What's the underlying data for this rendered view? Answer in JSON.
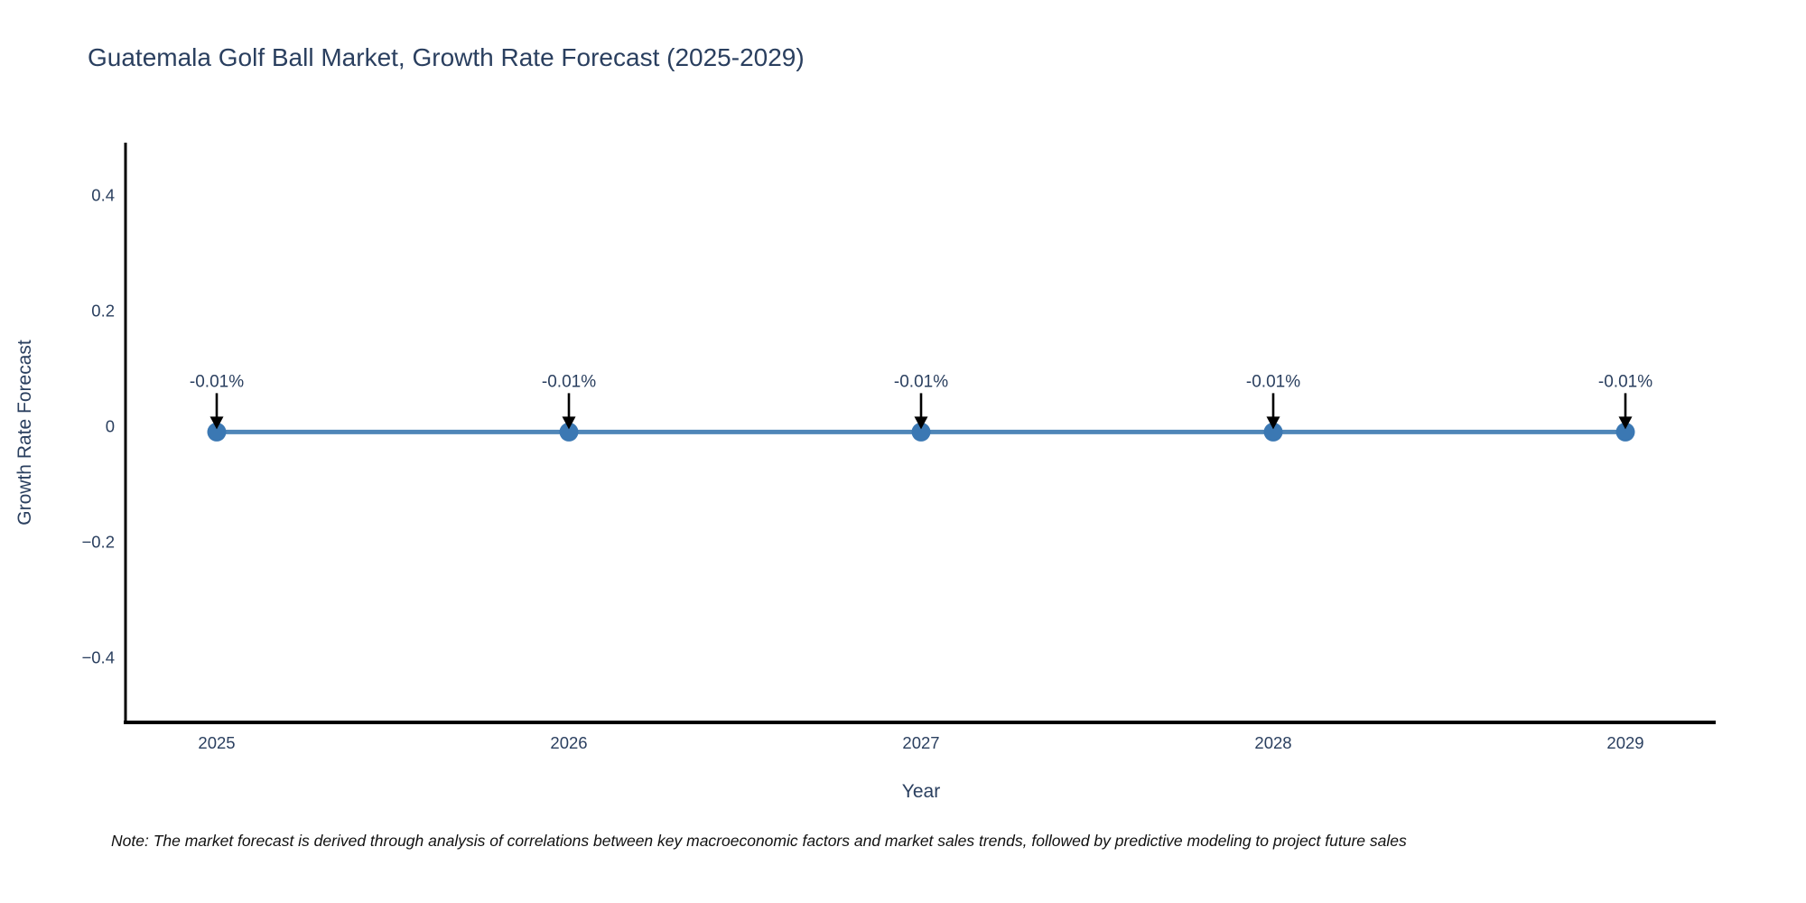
{
  "title": "Guatemala Golf Ball Market, Growth Rate Forecast (2025-2029)",
  "note": "Note: The market forecast is derived through analysis of correlations between key macroeconomic factors and market sales trends, followed by predictive modeling to project future sales",
  "chart_data": {
    "type": "line",
    "title": "Guatemala Golf Ball Market, Growth Rate Forecast (2025-2029)",
    "xlabel": "Year",
    "ylabel": "Growth Rate Forecast",
    "x": [
      2025,
      2026,
      2027,
      2028,
      2029
    ],
    "x_tick_labels": [
      "2025",
      "2026",
      "2027",
      "2028",
      "2029"
    ],
    "y": [
      -0.01,
      -0.01,
      -0.01,
      -0.01,
      -0.01
    ],
    "point_labels": [
      "-0.01%",
      "-0.01%",
      "-0.01%",
      "-0.01%",
      "-0.01%"
    ],
    "y_ticks": [
      0.4,
      0.2,
      0,
      -0.2,
      -0.4
    ],
    "y_tick_labels": [
      "0.4",
      "0.2",
      "0",
      "−0.2",
      "−0.4"
    ],
    "ylim": [
      -0.5,
      0.49
    ],
    "grid": false,
    "legend": false,
    "annotation_arrow": "down-arrow",
    "colors": {
      "line": "#4f86b8",
      "marker": "#3b78b3",
      "axis": "#000000",
      "text": "#2a3f5f",
      "arrow": "#000000",
      "background": "#ffffff"
    }
  }
}
